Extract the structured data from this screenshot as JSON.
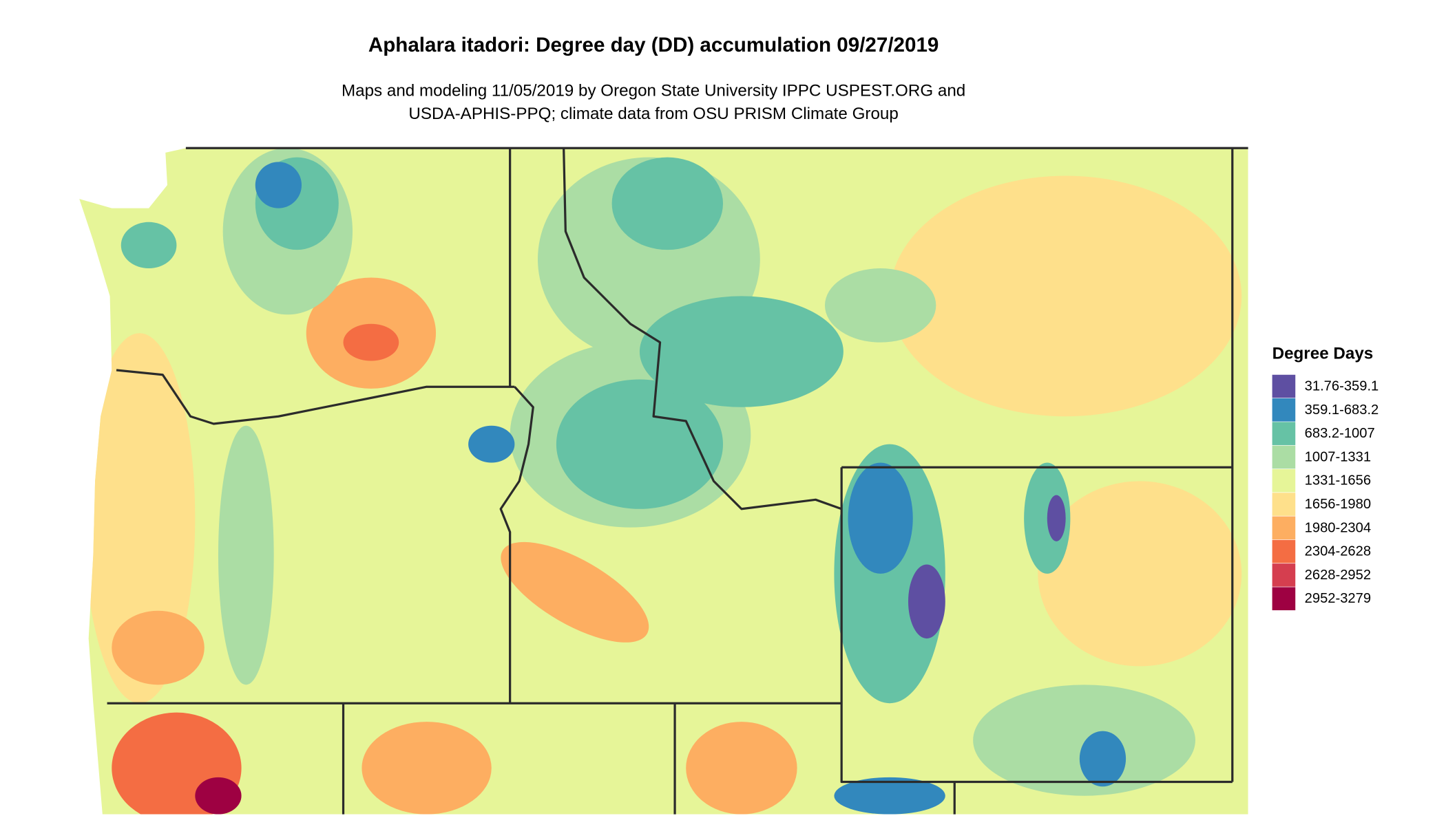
{
  "title": "Aphalara itadori: Degree day (DD) accumulation 09/27/2019",
  "subtitle": [
    "Maps and modeling 11/05/2019 by Oregon State University IPPC USPEST.ORG and",
    "USDA-APHIS-PPQ; climate data from OSU PRISM Climate Group"
  ],
  "legend": {
    "title": "Degree Days",
    "items": [
      {
        "label": "31.76-359.1",
        "color": "#5e4fa2"
      },
      {
        "label": "359.1-683.2",
        "color": "#3288bd"
      },
      {
        "label": "683.2-1007",
        "color": "#66c2a5"
      },
      {
        "label": "1007-1331",
        "color": "#abdda4"
      },
      {
        "label": "1331-1656",
        "color": "#e6f598"
      },
      {
        "label": "1656-1980",
        "color": "#fee08b"
      },
      {
        "label": "1980-2304",
        "color": "#fdae61"
      },
      {
        "label": "2304-2628",
        "color": "#f46d43"
      },
      {
        "label": "2628-2952",
        "color": "#d53e4f"
      },
      {
        "label": "2952-3279",
        "color": "#9e0142"
      }
    ]
  }
}
